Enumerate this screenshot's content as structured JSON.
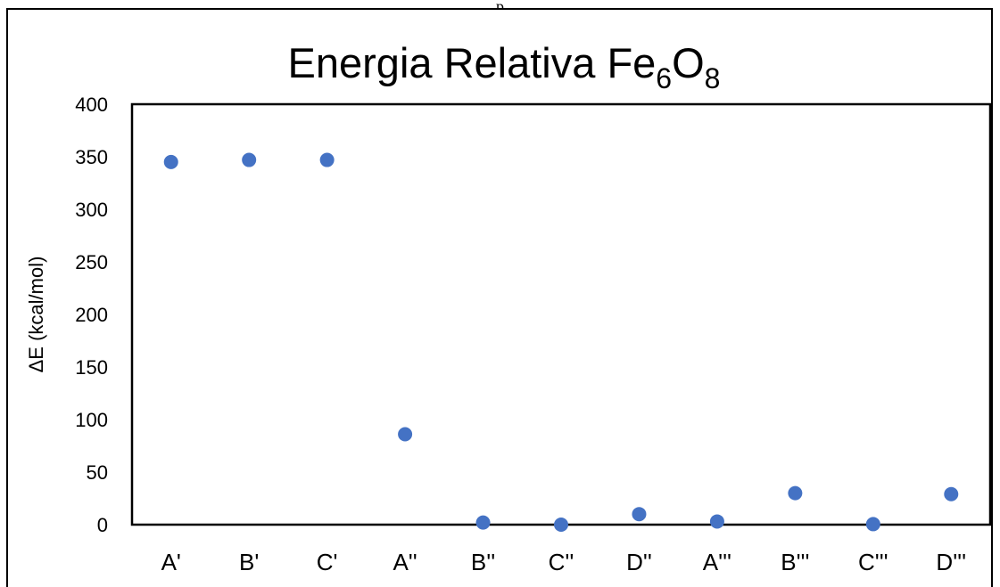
{
  "page": {
    "top_text": "p"
  },
  "chart_data": {
    "type": "scatter",
    "title": "Energia Relativa Fe",
    "title_sub1": "6",
    "title_mid": "O",
    "title_sub2": "8",
    "xlabel": "",
    "ylabel": "ΔE  (kcal/mol)",
    "categories": [
      "A'",
      "B'",
      "C'",
      "A''",
      "B''",
      "C''",
      "D''",
      "A'''",
      "B'''",
      "C'''",
      "D'''"
    ],
    "series": [
      {
        "values": [
          345,
          347,
          347,
          86,
          2,
          0,
          10,
          3,
          30,
          0.5,
          29
        ]
      }
    ],
    "ylim": [
      0,
      400
    ],
    "yticks": [
      0,
      50,
      100,
      150,
      200,
      250,
      300,
      350,
      400
    ],
    "grid": false,
    "legend": "none",
    "marker_color": "#4472c4"
  }
}
